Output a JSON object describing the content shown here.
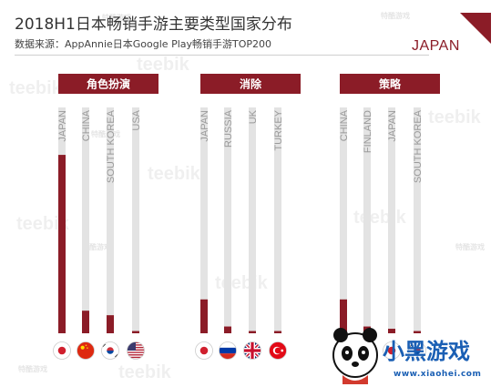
{
  "header": {
    "title": "2018H1日本畅销手游主要类型国家分布",
    "subtitle": "数据来源：AppAnnie日本Google Play畅销手游TOP200",
    "country_tag": "JAPAN"
  },
  "watermark": {
    "brand": "teebik",
    "small": "特酷游戏"
  },
  "logo": {
    "name": "小黑游戏",
    "url": "www.xiaohei.com"
  },
  "colors": {
    "accent": "#8b1c27",
    "track": "#e3e3e3"
  },
  "chart_data": [
    {
      "type": "bar",
      "title": "角色扮演",
      "categories": [
        "JAPAN",
        "CHINA",
        "SOUTH KOREA",
        "USA"
      ],
      "flags": [
        "japan-flag",
        "china-flag",
        "south-korea-flag",
        "usa-flag"
      ],
      "values": [
        79,
        10,
        8,
        1
      ],
      "ylim": [
        0,
        100
      ],
      "grid": false,
      "legend": "none"
    },
    {
      "type": "bar",
      "title": "消除",
      "categories": [
        "JAPAN",
        "RUSSIA",
        "UK",
        "TURKEY"
      ],
      "flags": [
        "japan-flag",
        "russia-flag",
        "uk-flag",
        "turkey-flag"
      ],
      "values": [
        15,
        3,
        1,
        1
      ],
      "ylim": [
        0,
        100
      ],
      "grid": false,
      "legend": "none"
    },
    {
      "type": "bar",
      "title": "策略",
      "categories": [
        "CHINA",
        "FINLAND",
        "JAPAN",
        "SOUTH KOREA"
      ],
      "flags": [
        "china-flag",
        "finland-flag",
        "japan-flag",
        "south-korea-flag"
      ],
      "values": [
        15,
        3,
        2,
        1
      ],
      "ylim": [
        0,
        100
      ],
      "grid": false,
      "legend": "none"
    }
  ]
}
